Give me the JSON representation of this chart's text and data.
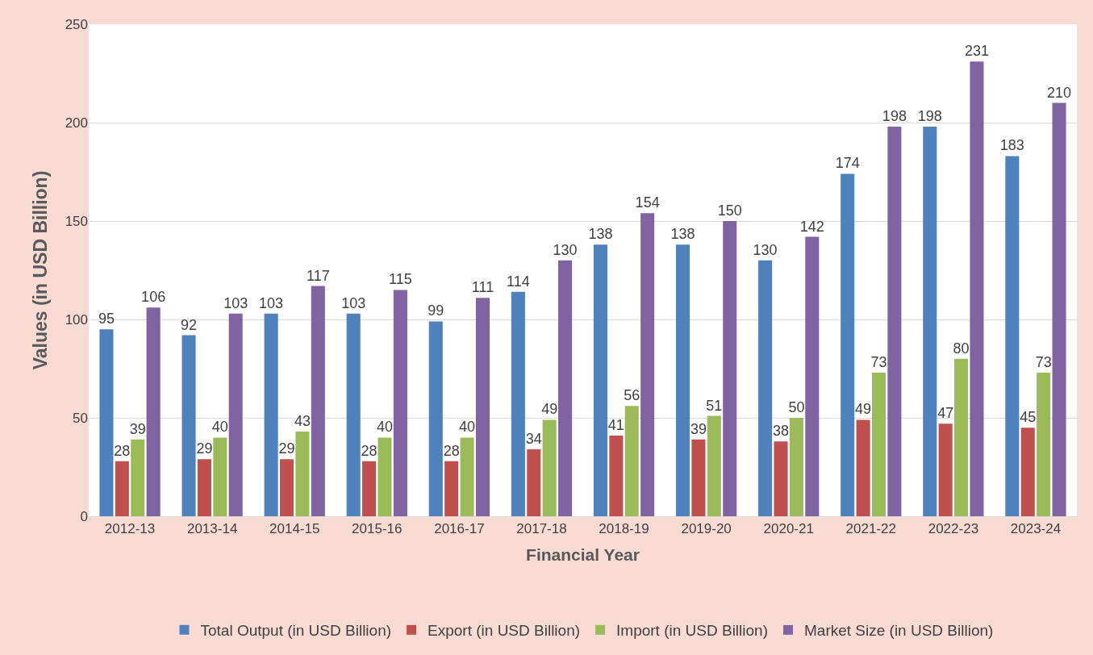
{
  "chart_data": {
    "type": "bar",
    "xlabel": "Financial Year",
    "ylabel": "Values (in USD Billion)",
    "categories": [
      "2012-13",
      "2013-14",
      "2014-15",
      "2015-16",
      "2016-17",
      "2017-18",
      "2018-19",
      "2019-20",
      "2020-21",
      "2021-22",
      "2022-23",
      "2023-24"
    ],
    "series": [
      {
        "name": "Total Output (in USD Billion)",
        "color": "#4f81bd",
        "values": [
          95,
          92,
          103,
          103,
          99,
          114,
          138,
          138,
          130,
          174,
          198,
          183
        ]
      },
      {
        "name": "Export (in USD Billion)",
        "color": "#c0504d",
        "values": [
          28,
          29,
          29,
          28,
          28,
          34,
          41,
          39,
          38,
          49,
          47,
          45
        ]
      },
      {
        "name": "Import (in USD Billion)",
        "color": "#9bbb59",
        "values": [
          39,
          40,
          43,
          40,
          40,
          49,
          56,
          51,
          50,
          73,
          80,
          73
        ]
      },
      {
        "name": "Market Size (in USD Billion)",
        "color": "#8064a2",
        "values": [
          106,
          103,
          117,
          115,
          111,
          130,
          154,
          150,
          142,
          198,
          231,
          210
        ]
      }
    ],
    "ylim": [
      0,
      250
    ],
    "yticks": [
      0,
      50,
      100,
      150,
      200,
      250
    ],
    "grid": "y",
    "data_labels": true,
    "legend": "bottom"
  }
}
